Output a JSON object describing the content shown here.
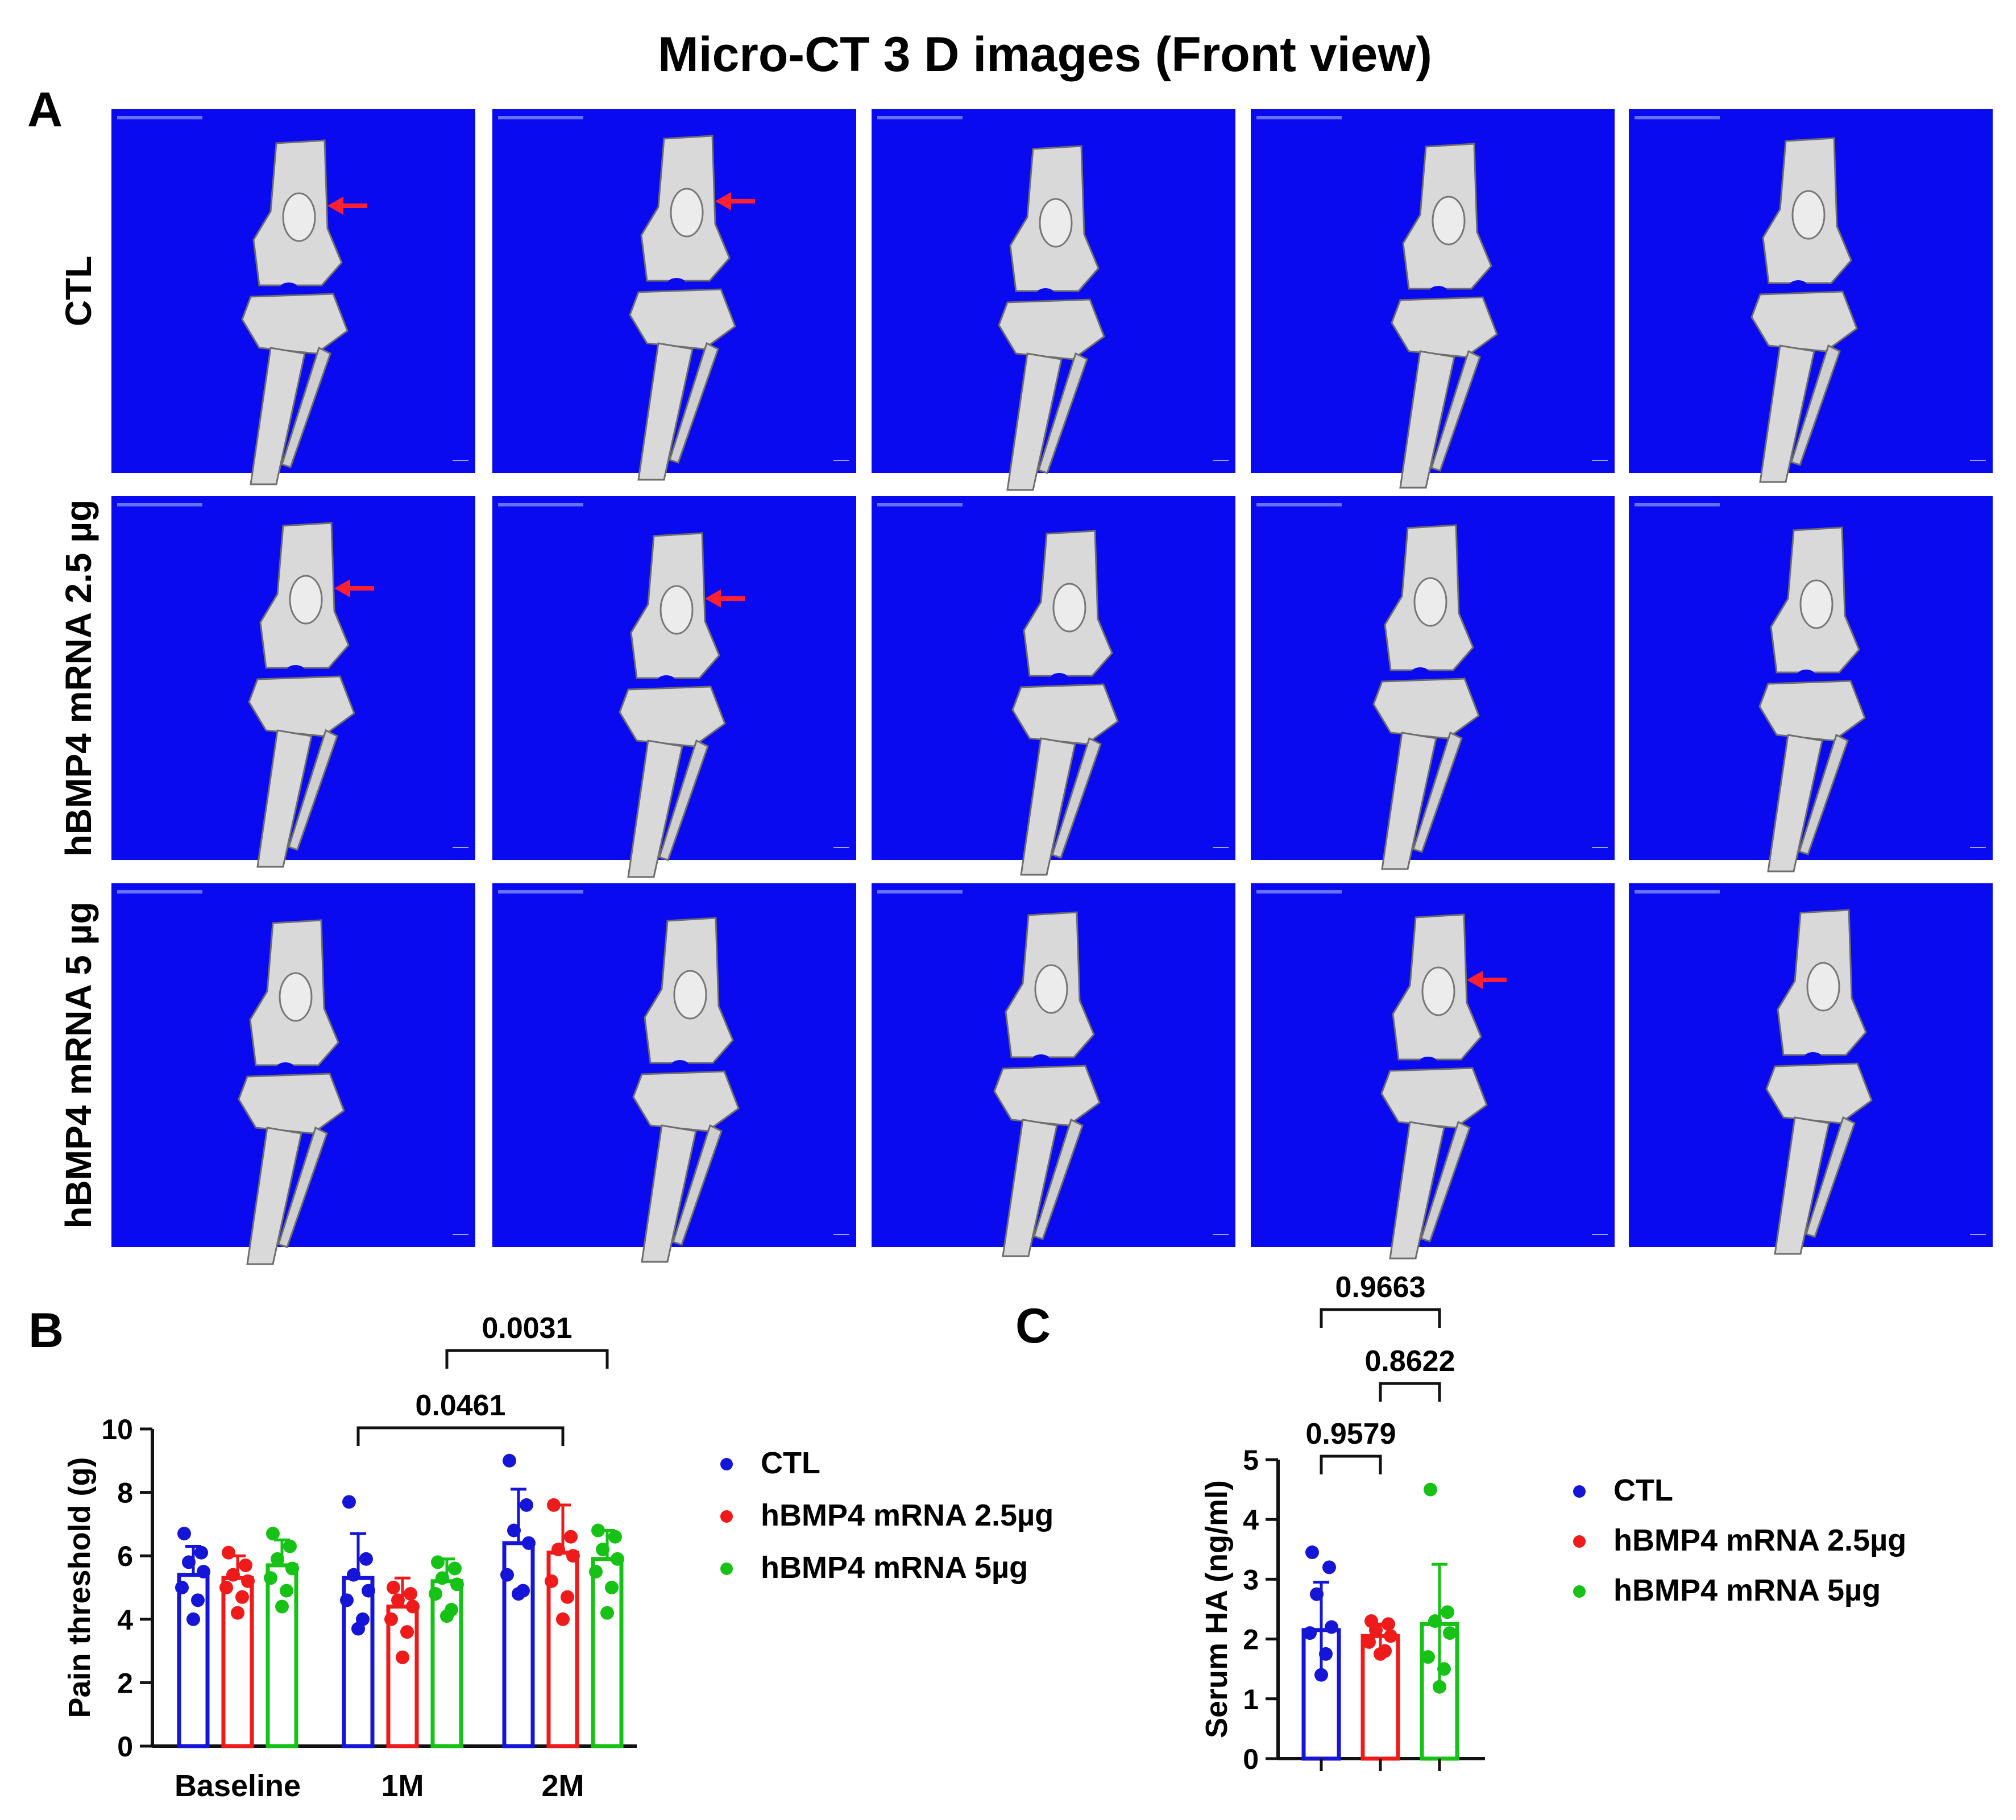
{
  "title": "Micro-CT 3 D images (Front view)",
  "panel_labels": {
    "a": "A",
    "b": "B",
    "c": "C"
  },
  "microct": {
    "row_labels": [
      "CTL",
      "hBMP4 mRNA 2.5 µg",
      "hBMP4 mRNA 5 µg"
    ],
    "columns": 5,
    "background_color": "#0a0af0",
    "bone_color": "#d9d9d9",
    "arrow_color": "#ff2030",
    "arrows": [
      [
        0,
        0
      ],
      [
        0,
        1
      ],
      [
        1,
        0
      ],
      [
        1,
        1
      ],
      [
        2,
        3
      ]
    ]
  },
  "colors": {
    "CTL": "#1515d8",
    "hBMP4 mRNA 2.5µg": "#ef1a1a",
    "hBMP4 mRNA 5µg": "#16c216"
  },
  "chart_data": [
    {
      "type": "bar",
      "panel": "B",
      "ylabel": "Pain threshold (g)",
      "categories": [
        "Baseline",
        "1M",
        "2M"
      ],
      "ylim": [
        0,
        10
      ],
      "yticks": [
        0,
        2,
        4,
        6,
        8,
        10
      ],
      "legend": "right",
      "series": [
        {
          "name": "CTL",
          "values": [
            5.4,
            5.3,
            6.4
          ],
          "sd": [
            0.9,
            1.4,
            1.7
          ],
          "points": [
            [
              6.7,
              6.1,
              5.8,
              5.5,
              5.0,
              4.6,
              4.0
            ],
            [
              7.7,
              5.9,
              5.4,
              4.9,
              4.6,
              4.0,
              3.7
            ],
            [
              9.0,
              7.6,
              6.8,
              6.4,
              5.4,
              4.9,
              4.8
            ]
          ]
        },
        {
          "name": "hBMP4 mRNA 2.5µg",
          "values": [
            5.3,
            4.4,
            6.1
          ],
          "sd": [
            0.7,
            0.9,
            1.5
          ],
          "points": [
            [
              6.1,
              5.7,
              5.4,
              5.2,
              5.0,
              4.7,
              4.2
            ],
            [
              5.0,
              4.8,
              4.6,
              4.4,
              4.0,
              3.6,
              2.8
            ],
            [
              7.6,
              6.6,
              6.2,
              6.0,
              5.2,
              4.7,
              4.0
            ]
          ]
        },
        {
          "name": "hBMP4 mRNA 5µg",
          "values": [
            5.7,
            5.2,
            5.9
          ],
          "sd": [
            0.8,
            0.7,
            0.9
          ],
          "points": [
            [
              6.7,
              6.3,
              5.9,
              5.6,
              5.3,
              4.9,
              4.4
            ],
            [
              5.8,
              5.6,
              5.3,
              5.1,
              4.8,
              4.3,
              4.1
            ],
            [
              6.8,
              6.6,
              6.2,
              5.9,
              5.5,
              5.0,
              4.2
            ]
          ]
        }
      ],
      "comparisons": [
        {
          "label": "0.0031",
          "from": [
            1,
            2
          ],
          "to": [
            2,
            2
          ]
        },
        {
          "label": "0.0461",
          "from": [
            1,
            0
          ],
          "to": [
            2,
            1
          ]
        }
      ]
    },
    {
      "type": "bar",
      "panel": "C",
      "ylabel": "Serum HA (ng/ml)",
      "categories": [
        "CTL",
        "hBMP4 mRNA 2.5µg",
        "hBMP4 mRNA 5µg"
      ],
      "ylim": [
        0,
        5
      ],
      "yticks": [
        0,
        1,
        2,
        3,
        4,
        5
      ],
      "legend": "right",
      "values": [
        2.15,
        2.05,
        2.25
      ],
      "sd": [
        0.8,
        0.2,
        1.0
      ],
      "points": [
        [
          3.45,
          3.2,
          2.75,
          2.2,
          2.1,
          1.75,
          1.4
        ],
        [
          2.3,
          2.25,
          2.15,
          2.05,
          1.95,
          1.8,
          1.75
        ],
        [
          4.5,
          2.45,
          2.3,
          2.1,
          1.7,
          1.5,
          1.2
        ]
      ],
      "comparisons": [
        {
          "label": "0.9663",
          "from": 0,
          "to": 2
        },
        {
          "label": "0.8622",
          "from": 1,
          "to": 2
        },
        {
          "label": "0.9579",
          "from": 0,
          "to": 1
        }
      ]
    }
  ],
  "legend_b": [
    "CTL",
    "hBMP4 mRNA 2.5µg",
    "hBMP4 mRNA 5µg"
  ],
  "legend_c": [
    "CTL",
    "hBMP4 mRNA 2.5µg",
    "hBMP4 mRNA 5µg"
  ]
}
